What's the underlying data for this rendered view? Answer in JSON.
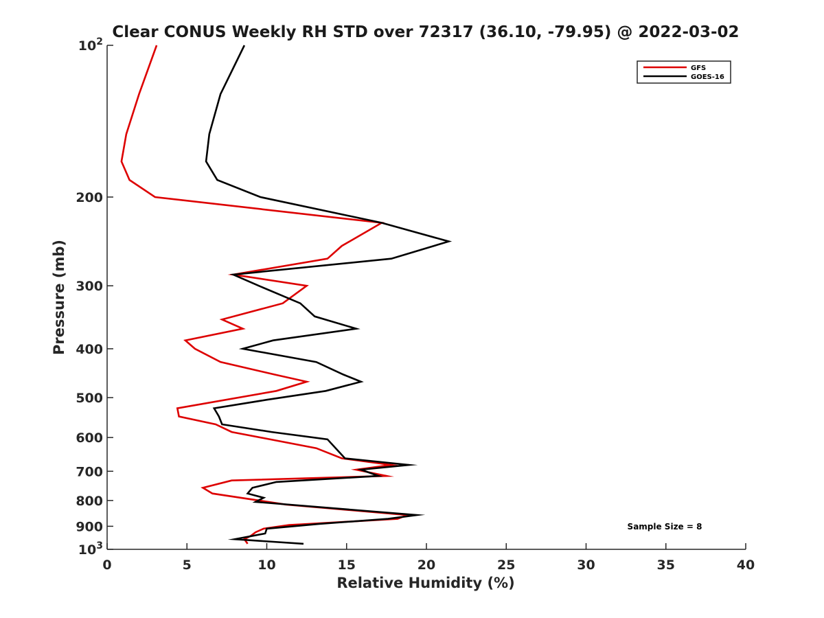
{
  "chart_data": {
    "type": "line",
    "title": "Clear CONUS Weekly RH STD over 72317 (36.10, -79.95) @ 2022-03-02",
    "xlabel": "Relative Humidity (%)",
    "ylabel": "Pressure (mb)",
    "xlim": [
      0,
      40
    ],
    "ylim": [
      100,
      1000
    ],
    "yscale": "log",
    "y_reversed": true,
    "grid": false,
    "legend_position": "top-right",
    "x_ticks": [
      "0",
      "5",
      "10",
      "15",
      "20",
      "25",
      "30",
      "35",
      "40"
    ],
    "y_ticks": [
      {
        "value": 100,
        "label": "10",
        "sup": "2"
      },
      {
        "value": 200,
        "label": "200",
        "sup": ""
      },
      {
        "value": 300,
        "label": "300",
        "sup": ""
      },
      {
        "value": 400,
        "label": "400",
        "sup": ""
      },
      {
        "value": 500,
        "label": "500",
        "sup": ""
      },
      {
        "value": 600,
        "label": "600",
        "sup": ""
      },
      {
        "value": 700,
        "label": "700",
        "sup": ""
      },
      {
        "value": 800,
        "label": "800",
        "sup": ""
      },
      {
        "value": 900,
        "label": "900",
        "sup": ""
      },
      {
        "value": 1000,
        "label": "10",
        "sup": "3"
      }
    ],
    "series": [
      {
        "name": "GFS",
        "color": "#dd0000",
        "points": [
          [
            3.1,
            100
          ],
          [
            2.0,
            125
          ],
          [
            1.2,
            150
          ],
          [
            0.9,
            170
          ],
          [
            1.4,
            185
          ],
          [
            3.0,
            200
          ],
          [
            17.2,
            225
          ],
          [
            14.7,
            250
          ],
          [
            13.8,
            265
          ],
          [
            7.9,
            285
          ],
          [
            12.5,
            300
          ],
          [
            11.0,
            325
          ],
          [
            7.2,
            350
          ],
          [
            8.5,
            365
          ],
          [
            4.9,
            385
          ],
          [
            5.5,
            400
          ],
          [
            7.1,
            425
          ],
          [
            10.5,
            450
          ],
          [
            12.5,
            465
          ],
          [
            10.6,
            485
          ],
          [
            4.4,
            525
          ],
          [
            4.5,
            545
          ],
          [
            6.8,
            565
          ],
          [
            7.8,
            585
          ],
          [
            13.1,
            630
          ],
          [
            14.7,
            660
          ],
          [
            17.8,
            680
          ],
          [
            15.6,
            695
          ],
          [
            17.5,
            715
          ],
          [
            7.8,
            730
          ],
          [
            6.0,
            755
          ],
          [
            6.6,
            775
          ],
          [
            11.2,
            815
          ],
          [
            18.8,
            855
          ],
          [
            18.2,
            870
          ],
          [
            11.4,
            895
          ],
          [
            9.8,
            910
          ],
          [
            9.3,
            925
          ],
          [
            9.0,
            940
          ],
          [
            8.6,
            955
          ],
          [
            8.8,
            975
          ]
        ]
      },
      {
        "name": "GOES-16",
        "color": "#000000",
        "points": [
          [
            8.6,
            100
          ],
          [
            7.1,
            125
          ],
          [
            6.4,
            150
          ],
          [
            6.2,
            170
          ],
          [
            6.9,
            185
          ],
          [
            9.6,
            200
          ],
          [
            17.2,
            225
          ],
          [
            21.4,
            245
          ],
          [
            17.8,
            265
          ],
          [
            7.9,
            285
          ],
          [
            9.5,
            300
          ],
          [
            12.1,
            325
          ],
          [
            13.0,
            345
          ],
          [
            15.6,
            365
          ],
          [
            10.4,
            385
          ],
          [
            8.5,
            400
          ],
          [
            13.1,
            425
          ],
          [
            14.8,
            450
          ],
          [
            15.9,
            465
          ],
          [
            13.7,
            485
          ],
          [
            10.0,
            505
          ],
          [
            6.7,
            525
          ],
          [
            7.0,
            545
          ],
          [
            7.2,
            565
          ],
          [
            10.3,
            585
          ],
          [
            13.8,
            605
          ],
          [
            14.9,
            660
          ],
          [
            18.9,
            680
          ],
          [
            15.9,
            695
          ],
          [
            17.0,
            715
          ],
          [
            10.6,
            735
          ],
          [
            9.1,
            755
          ],
          [
            8.8,
            775
          ],
          [
            9.8,
            790
          ],
          [
            9.3,
            805
          ],
          [
            19.4,
            855
          ],
          [
            17.6,
            870
          ],
          [
            13.3,
            890
          ],
          [
            10.0,
            910
          ],
          [
            9.9,
            930
          ],
          [
            8.0,
            955
          ],
          [
            12.3,
            975
          ]
        ]
      }
    ],
    "annotation": "Sample Size = 8"
  }
}
